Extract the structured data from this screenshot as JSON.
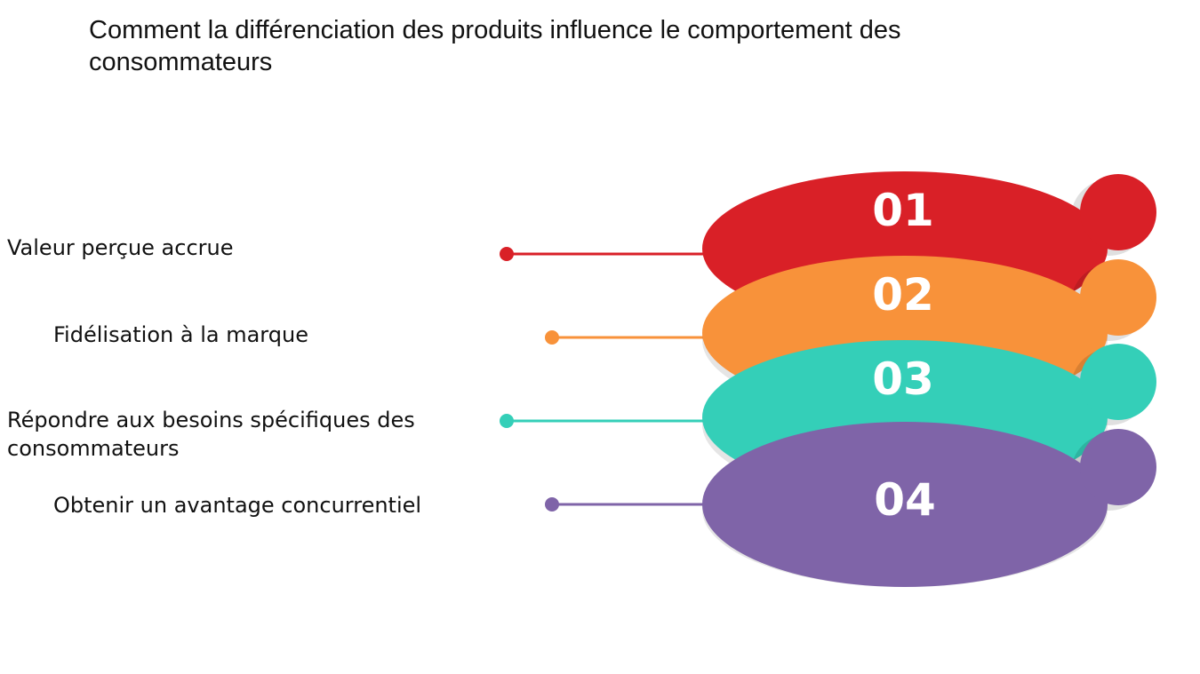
{
  "title": "Comment la différenciation des produits influence le comportement des consommateurs",
  "steps": [
    {
      "number": "01",
      "label": "Valeur perçue accrue",
      "color": "#d92027"
    },
    {
      "number": "02",
      "label": "Fidélisation à la marque",
      "color": "#f8923a"
    },
    {
      "number": "03",
      "label": "Répondre aux besoins spécifiques des consommateurs",
      "color": "#34cfb8"
    },
    {
      "number": "04",
      "label": "Obtenir un avantage concurrentiel",
      "color": "#7f64a8"
    }
  ]
}
